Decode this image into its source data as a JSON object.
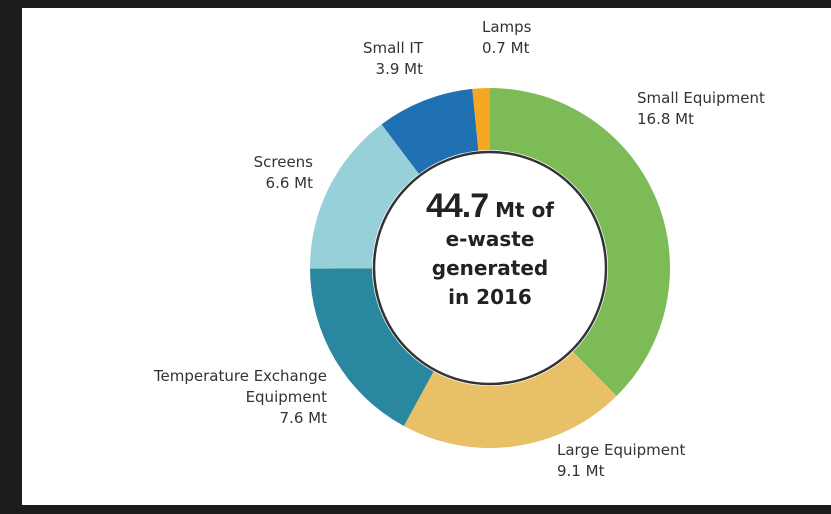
{
  "chart_data": {
    "type": "donut",
    "categories": [
      "Small Equipment",
      "Large Equipment",
      "Temperature Exchange Equipment",
      "Screens",
      "Small IT",
      "Lamps"
    ],
    "values": [
      16.8,
      9.1,
      7.6,
      6.6,
      3.9,
      0.7
    ],
    "value_labels": [
      "16.8 Mt",
      "9.1 Mt",
      "7.6 Mt",
      "6.6 Mt",
      "3.9 Mt",
      "0.7 Mt"
    ],
    "colors": [
      "#7dbb57",
      "#e8c068",
      "#2a87a0",
      "#97d0d8",
      "#2070b4",
      "#f6a623"
    ],
    "center_value": 44.7,
    "center_lines": [
      "Mt of",
      "e-waste",
      "generated",
      "in 2016"
    ]
  }
}
